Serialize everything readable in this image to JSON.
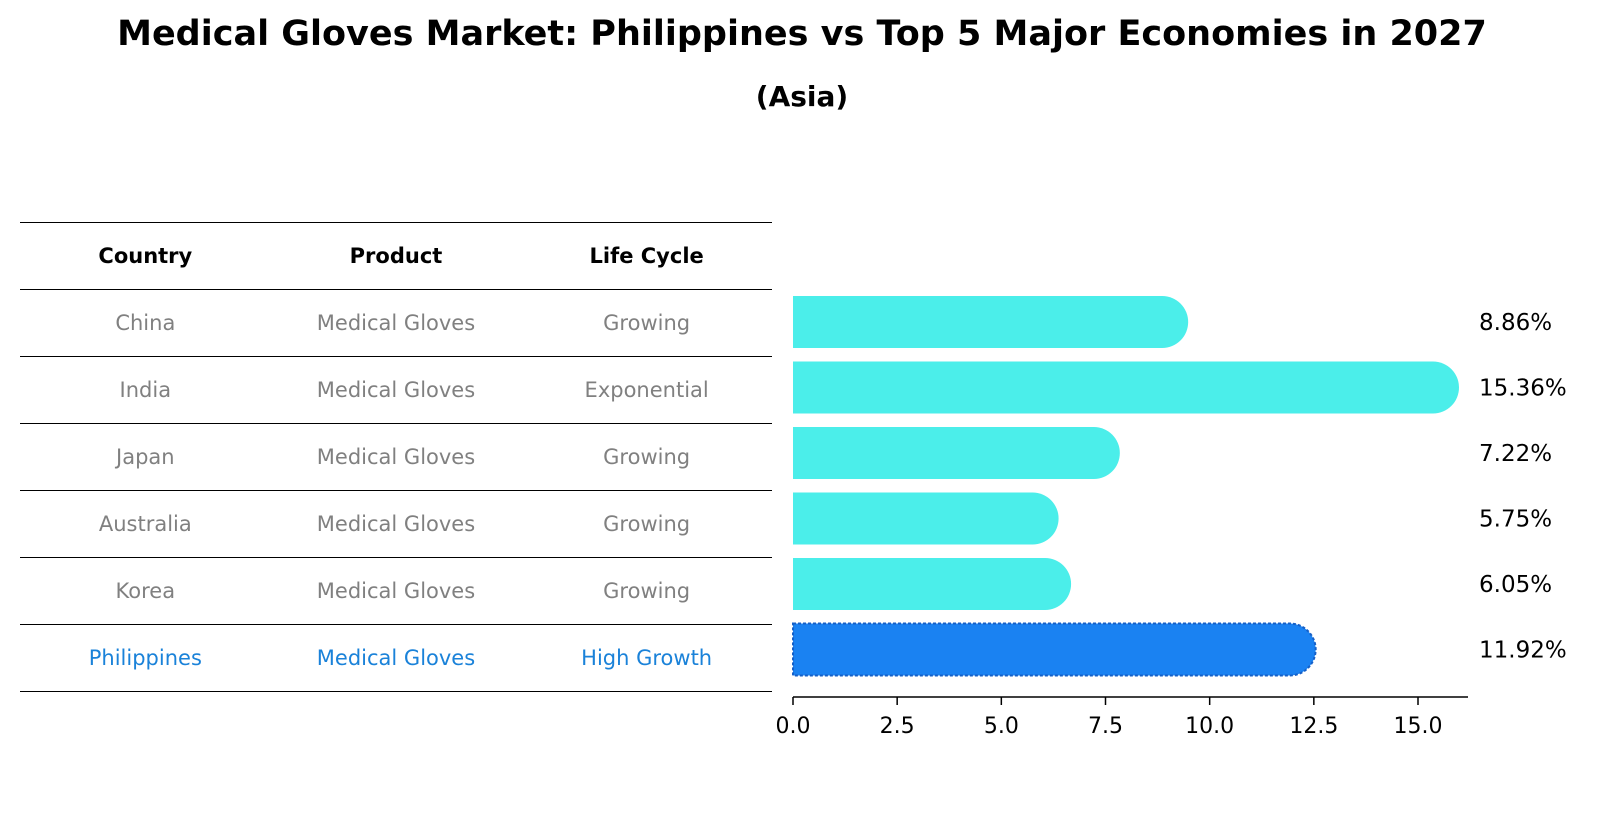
{
  "title": "Medical Gloves Market: Philippines vs Top 5 Major Economies in 2027",
  "subtitle": "(Asia)",
  "table": {
    "headers": [
      "Country",
      "Product",
      "Life Cycle"
    ],
    "rows": [
      {
        "country": "China",
        "product": "Medical Gloves",
        "life_cycle": "Growing"
      },
      {
        "country": "India",
        "product": "Medical Gloves",
        "life_cycle": "Exponential"
      },
      {
        "country": "Japan",
        "product": "Medical Gloves",
        "life_cycle": "Growing"
      },
      {
        "country": "Australia",
        "product": "Medical Gloves",
        "life_cycle": "Growing"
      },
      {
        "country": "Korea",
        "product": "Medical Gloves",
        "life_cycle": "Growing"
      },
      {
        "country": "Philippines",
        "product": "Medical Gloves",
        "life_cycle": "High Growth"
      }
    ]
  },
  "colors": {
    "bar": "#4beeea",
    "highlight": "#1a82f2",
    "highlight_text": "#1a82d9",
    "muted_text": "#808080"
  },
  "chart_data": {
    "type": "bar",
    "orientation": "horizontal",
    "categories": [
      "China",
      "India",
      "Japan",
      "Australia",
      "Korea",
      "Philippines"
    ],
    "values": [
      8.86,
      15.36,
      7.22,
      5.75,
      6.05,
      11.92
    ],
    "value_labels": [
      "8.86%",
      "15.36%",
      "7.22%",
      "5.75%",
      "6.05%",
      "11.92%"
    ],
    "highlight": "Philippines",
    "xlim": [
      0,
      16.2
    ],
    "xticks": [
      0.0,
      2.5,
      5.0,
      7.5,
      10.0,
      12.5,
      15.0
    ],
    "xtick_labels": [
      "0.0",
      "2.5",
      "5.0",
      "7.5",
      "10.0",
      "12.5",
      "15.0"
    ]
  }
}
